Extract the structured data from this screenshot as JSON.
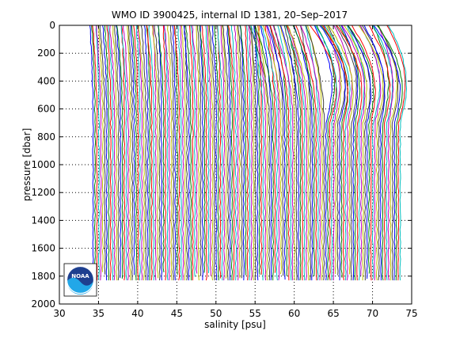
{
  "chart_data": {
    "type": "line",
    "title": "WMO ID 3900425, internal ID 1381, 20–Sep–2017",
    "xlabel": "salinity [psu]",
    "ylabel": "pressure [dbar]",
    "xlim": [
      30,
      75
    ],
    "ylim": [
      2000,
      0
    ],
    "y_reversed": true,
    "grid": true,
    "legend": "none",
    "xticks": [
      30,
      35,
      40,
      45,
      50,
      55,
      60,
      65,
      70,
      75
    ],
    "yticks": [
      0,
      200,
      400,
      600,
      800,
      1000,
      1200,
      1400,
      1600,
      1800,
      2000
    ],
    "profiles": {
      "description": "Waterfall of salinity profiles, each offset ~0.25 psu from the previous",
      "count": 158,
      "first_offset_psu": 34.3,
      "offset_step_psu": 0.25,
      "max_pressure_dbar": 1830,
      "color_cycle": [
        "#0000ff",
        "#008000",
        "#ff0000",
        "#00bfbf",
        "#bf00bf",
        "#bfbf00",
        "#404040"
      ]
    }
  },
  "logo": {
    "name": "noaa-logo",
    "text": "NOAA"
  }
}
